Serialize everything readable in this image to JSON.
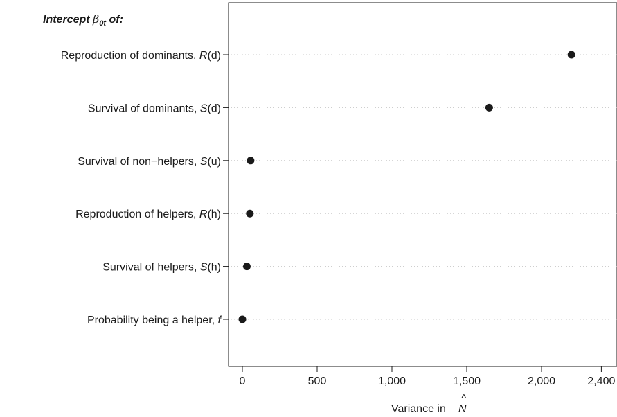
{
  "chart_data": {
    "type": "scatter",
    "title": "",
    "header": "Intercept β0t of:",
    "xlabel": "Variance in N̂",
    "ylabel": "",
    "xlim": [
      -60,
      2400
    ],
    "grid": "horizontal dotted",
    "categories": [
      "Reproduction of dominants, R(d)",
      "Survival of dominants, S(d)",
      "Survival of non−helpers, S(u)",
      "Reproduction of helpers, R(h)",
      "Survival of helpers, S(h)",
      "Probability being a helper, f"
    ],
    "x_ticks": [
      0,
      500,
      1000,
      1500,
      2000,
      2400
    ],
    "x_tick_labels": [
      "0",
      "500",
      "1,000",
      "1,500",
      "2,000",
      "2,400"
    ],
    "series": [
      {
        "values": [
          2200,
          1650,
          55,
          50,
          30,
          0
        ]
      }
    ],
    "colors": {
      "point": "#1a1a1a",
      "grid": "#c8c8c8",
      "axis": "#1a1a1a"
    }
  }
}
